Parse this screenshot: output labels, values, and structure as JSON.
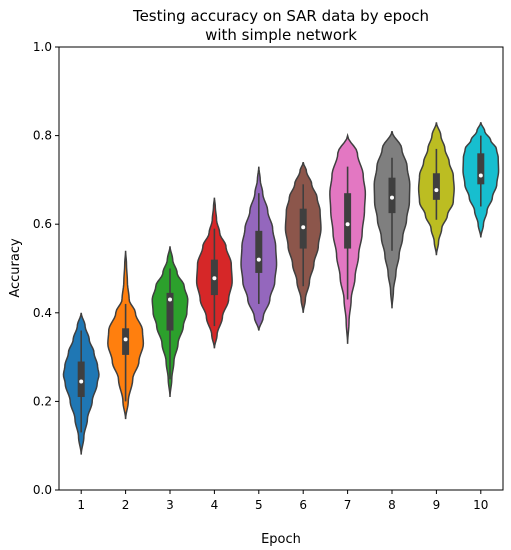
{
  "chart_data": {
    "type": "violin",
    "title_lines": [
      "Testing accuracy on SAR data by epoch",
      "with simple network"
    ],
    "xlabel": "Epoch",
    "ylabel": "Accuracy",
    "ylim": [
      0.0,
      1.0
    ],
    "yticks": [
      "0.0",
      "0.2",
      "0.4",
      "0.6",
      "0.8",
      "1.0"
    ],
    "categories": [
      "1",
      "2",
      "3",
      "4",
      "5",
      "6",
      "7",
      "8",
      "9",
      "10"
    ],
    "grid": false,
    "legend": "none",
    "violins": [
      {
        "category": "1",
        "color": "#1f77b4",
        "min": 0.08,
        "max": 0.4,
        "q1": 0.21,
        "median": 0.245,
        "q3": 0.29,
        "whisker_low": 0.13,
        "whisker_high": 0.36,
        "shape": [
          [
            0.08,
            0.0
          ],
          [
            0.12,
            0.15
          ],
          [
            0.16,
            0.35
          ],
          [
            0.2,
            0.62
          ],
          [
            0.24,
            0.9
          ],
          [
            0.26,
            1.0
          ],
          [
            0.28,
            0.92
          ],
          [
            0.31,
            0.72
          ],
          [
            0.34,
            0.45
          ],
          [
            0.37,
            0.22
          ],
          [
            0.4,
            0.0
          ]
        ]
      },
      {
        "category": "2",
        "color": "#ff7f0e",
        "min": 0.16,
        "max": 0.54,
        "q1": 0.305,
        "median": 0.34,
        "q3": 0.365,
        "whisker_low": 0.2,
        "whisker_high": 0.42,
        "shape": [
          [
            0.16,
            0.0
          ],
          [
            0.2,
            0.15
          ],
          [
            0.25,
            0.4
          ],
          [
            0.29,
            0.75
          ],
          [
            0.33,
            1.0
          ],
          [
            0.36,
            0.95
          ],
          [
            0.4,
            0.55
          ],
          [
            0.43,
            0.2
          ],
          [
            0.47,
            0.1
          ],
          [
            0.51,
            0.05
          ],
          [
            0.54,
            0.0
          ]
        ]
      },
      {
        "category": "3",
        "color": "#2ca02c",
        "min": 0.21,
        "max": 0.55,
        "q1": 0.36,
        "median": 0.43,
        "q3": 0.445,
        "whisker_low": 0.25,
        "whisker_high": 0.5,
        "shape": [
          [
            0.21,
            0.0
          ],
          [
            0.25,
            0.1
          ],
          [
            0.29,
            0.22
          ],
          [
            0.33,
            0.45
          ],
          [
            0.37,
            0.75
          ],
          [
            0.4,
            0.95
          ],
          [
            0.43,
            1.0
          ],
          [
            0.46,
            0.8
          ],
          [
            0.49,
            0.4
          ],
          [
            0.52,
            0.15
          ],
          [
            0.55,
            0.0
          ]
        ]
      },
      {
        "category": "4",
        "color": "#d62728",
        "min": 0.32,
        "max": 0.66,
        "q1": 0.44,
        "median": 0.478,
        "q3": 0.52,
        "whisker_low": 0.37,
        "whisker_high": 0.59,
        "shape": [
          [
            0.32,
            0.0
          ],
          [
            0.35,
            0.15
          ],
          [
            0.39,
            0.45
          ],
          [
            0.43,
            0.8
          ],
          [
            0.47,
            1.0
          ],
          [
            0.51,
            0.95
          ],
          [
            0.55,
            0.65
          ],
          [
            0.58,
            0.3
          ],
          [
            0.61,
            0.12
          ],
          [
            0.64,
            0.05
          ],
          [
            0.66,
            0.0
          ]
        ]
      },
      {
        "category": "5",
        "color": "#9467bd",
        "min": 0.36,
        "max": 0.73,
        "q1": 0.49,
        "median": 0.52,
        "q3": 0.585,
        "whisker_low": 0.42,
        "whisker_high": 0.67,
        "shape": [
          [
            0.36,
            0.0
          ],
          [
            0.39,
            0.25
          ],
          [
            0.43,
            0.62
          ],
          [
            0.47,
            0.9
          ],
          [
            0.51,
            1.0
          ],
          [
            0.55,
            0.95
          ],
          [
            0.59,
            0.78
          ],
          [
            0.63,
            0.5
          ],
          [
            0.67,
            0.22
          ],
          [
            0.7,
            0.08
          ],
          [
            0.73,
            0.0
          ]
        ]
      },
      {
        "category": "6",
        "color": "#8c564b",
        "min": 0.4,
        "max": 0.74,
        "q1": 0.545,
        "median": 0.593,
        "q3": 0.635,
        "whisker_low": 0.46,
        "whisker_high": 0.69,
        "shape": [
          [
            0.4,
            0.0
          ],
          [
            0.43,
            0.12
          ],
          [
            0.47,
            0.35
          ],
          [
            0.51,
            0.6
          ],
          [
            0.55,
            0.85
          ],
          [
            0.59,
            1.0
          ],
          [
            0.63,
            0.95
          ],
          [
            0.66,
            0.78
          ],
          [
            0.69,
            0.48
          ],
          [
            0.72,
            0.18
          ],
          [
            0.74,
            0.0
          ]
        ]
      },
      {
        "category": "7",
        "color": "#e377c2",
        "min": 0.33,
        "max": 0.8,
        "q1": 0.545,
        "median": 0.6,
        "q3": 0.67,
        "whisker_low": 0.43,
        "whisker_high": 0.73,
        "shape": [
          [
            0.33,
            0.0
          ],
          [
            0.38,
            0.08
          ],
          [
            0.43,
            0.2
          ],
          [
            0.48,
            0.42
          ],
          [
            0.53,
            0.62
          ],
          [
            0.58,
            0.82
          ],
          [
            0.63,
            0.95
          ],
          [
            0.67,
            1.0
          ],
          [
            0.71,
            0.88
          ],
          [
            0.76,
            0.55
          ],
          [
            0.8,
            0.0
          ]
        ]
      },
      {
        "category": "8",
        "color": "#7f7f7f",
        "min": 0.41,
        "max": 0.81,
        "q1": 0.625,
        "median": 0.66,
        "q3": 0.705,
        "whisker_low": 0.54,
        "whisker_high": 0.75,
        "shape": [
          [
            0.41,
            0.0
          ],
          [
            0.45,
            0.08
          ],
          [
            0.49,
            0.22
          ],
          [
            0.53,
            0.4
          ],
          [
            0.57,
            0.6
          ],
          [
            0.61,
            0.82
          ],
          [
            0.65,
            0.98
          ],
          [
            0.69,
            1.0
          ],
          [
            0.73,
            0.85
          ],
          [
            0.77,
            0.55
          ],
          [
            0.81,
            0.0
          ]
        ]
      },
      {
        "category": "9",
        "color": "#bcbd22",
        "min": 0.53,
        "max": 0.83,
        "q1": 0.655,
        "median": 0.677,
        "q3": 0.715,
        "whisker_low": 0.61,
        "whisker_high": 0.77,
        "shape": [
          [
            0.53,
            0.0
          ],
          [
            0.56,
            0.12
          ],
          [
            0.59,
            0.3
          ],
          [
            0.62,
            0.62
          ],
          [
            0.65,
            0.95
          ],
          [
            0.68,
            1.0
          ],
          [
            0.71,
            0.95
          ],
          [
            0.74,
            0.72
          ],
          [
            0.77,
            0.48
          ],
          [
            0.8,
            0.25
          ],
          [
            0.83,
            0.0
          ]
        ]
      },
      {
        "category": "10",
        "color": "#17becf",
        "min": 0.57,
        "max": 0.83,
        "q1": 0.69,
        "median": 0.71,
        "q3": 0.76,
        "whisker_low": 0.64,
        "whisker_high": 0.8,
        "shape": [
          [
            0.57,
            0.0
          ],
          [
            0.6,
            0.15
          ],
          [
            0.63,
            0.35
          ],
          [
            0.66,
            0.65
          ],
          [
            0.69,
            0.9
          ],
          [
            0.72,
            1.0
          ],
          [
            0.75,
            0.98
          ],
          [
            0.77,
            0.88
          ],
          [
            0.79,
            0.55
          ],
          [
            0.81,
            0.22
          ],
          [
            0.83,
            0.0
          ]
        ]
      }
    ]
  }
}
